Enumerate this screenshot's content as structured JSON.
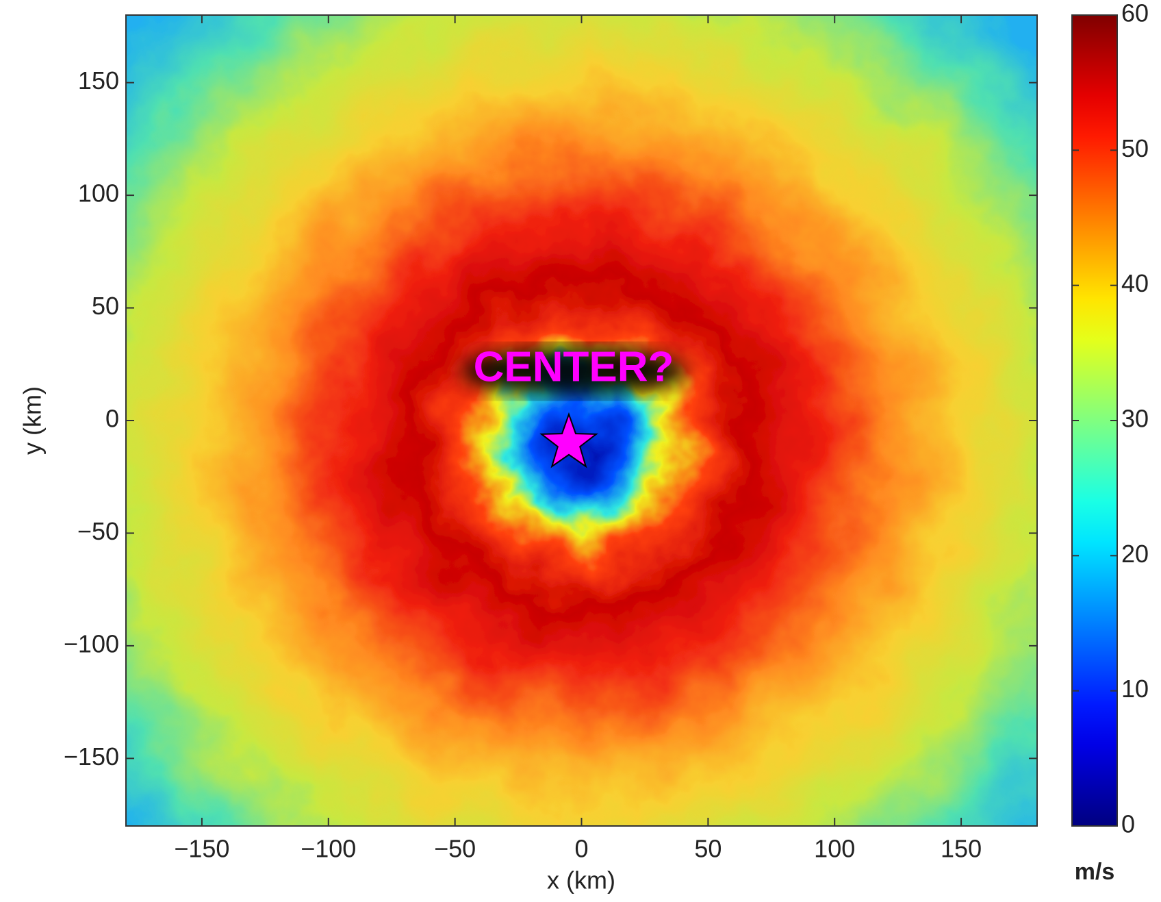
{
  "chart_data": {
    "type": "heatmap",
    "xlabel": "x (km)",
    "ylabel": "y (km)",
    "xlim": [
      -180,
      180
    ],
    "ylim": [
      -180,
      180
    ],
    "xticks": [
      {
        "value": -150,
        "label": "−150"
      },
      {
        "value": -100,
        "label": "−100"
      },
      {
        "value": -50,
        "label": "−50"
      },
      0,
      50,
      100,
      150
    ],
    "yticks": [
      {
        "value": -150,
        "label": "−150"
      },
      {
        "value": -100,
        "label": "−100"
      },
      {
        "value": -50,
        "label": "−50"
      },
      0,
      50,
      100,
      150
    ],
    "colormap": "jet",
    "clim": [
      0,
      60
    ],
    "cticks": [
      0,
      10,
      20,
      30,
      40,
      50,
      60
    ],
    "colorbar_label": "m/s",
    "annotation": "CENTER?",
    "marker": {
      "x": -5,
      "y": -10,
      "color": "#ff00ff"
    }
  }
}
